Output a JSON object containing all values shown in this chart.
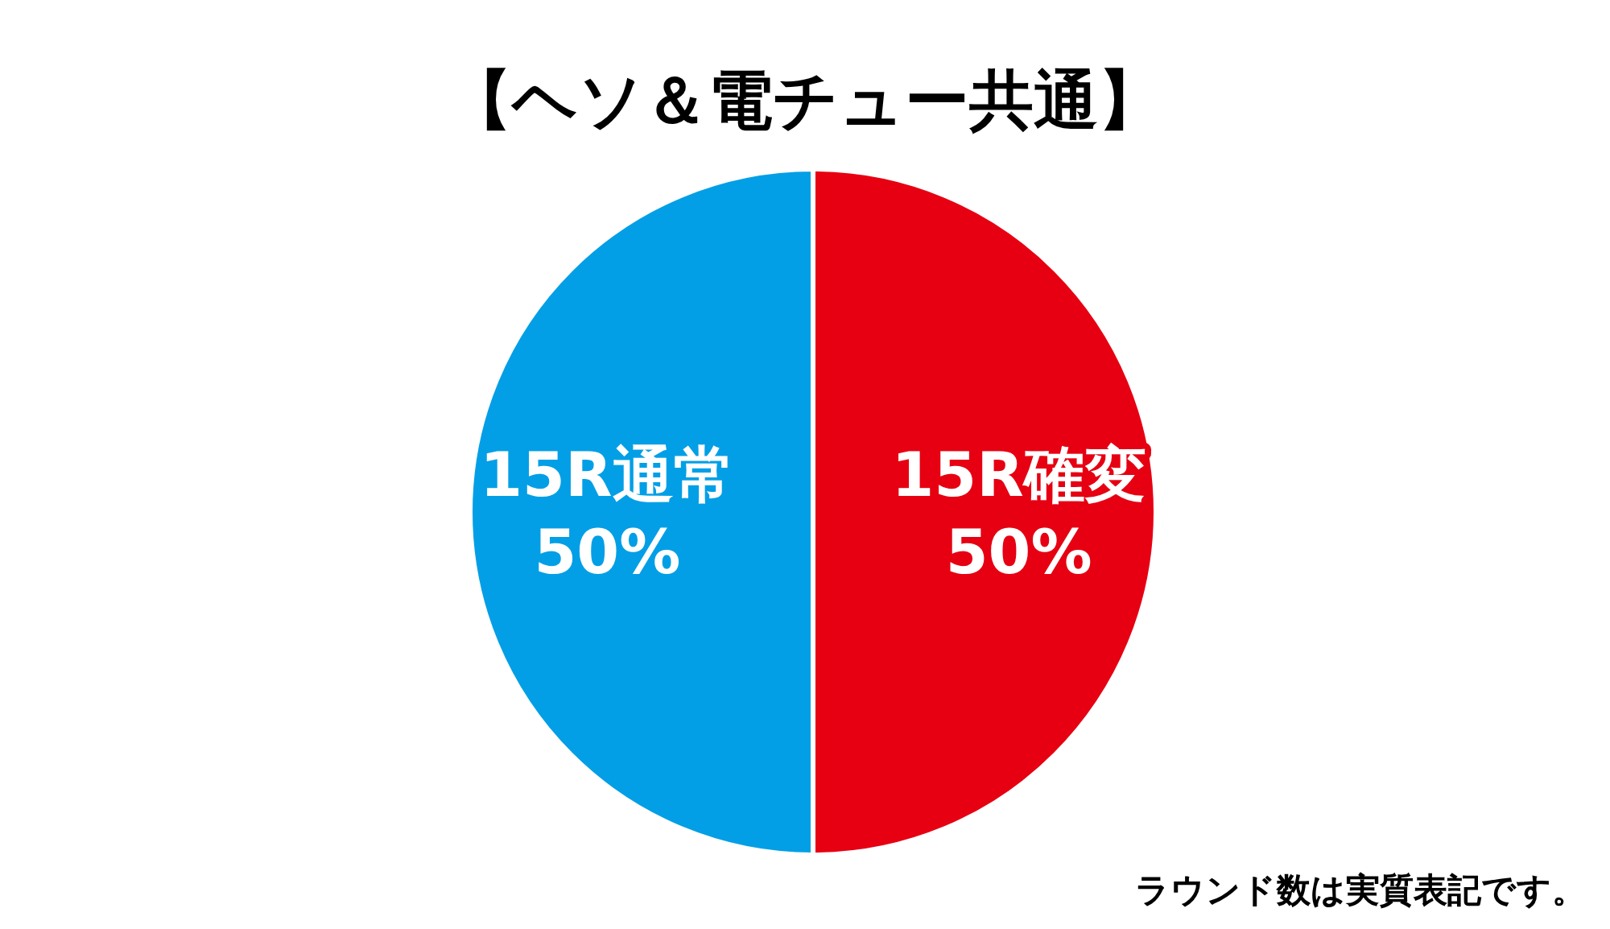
{
  "chart_data": {
    "type": "pie",
    "title": "【ヘソ＆電チュー共通】",
    "categories": [
      "15R確変",
      "15R通常"
    ],
    "values": [
      50,
      50
    ],
    "colors": [
      "#e60012",
      "#039fe6"
    ],
    "value_labels": [
      "50%",
      "50%"
    ],
    "annotations": [
      "ラウンド数は実質表記です。"
    ]
  }
}
